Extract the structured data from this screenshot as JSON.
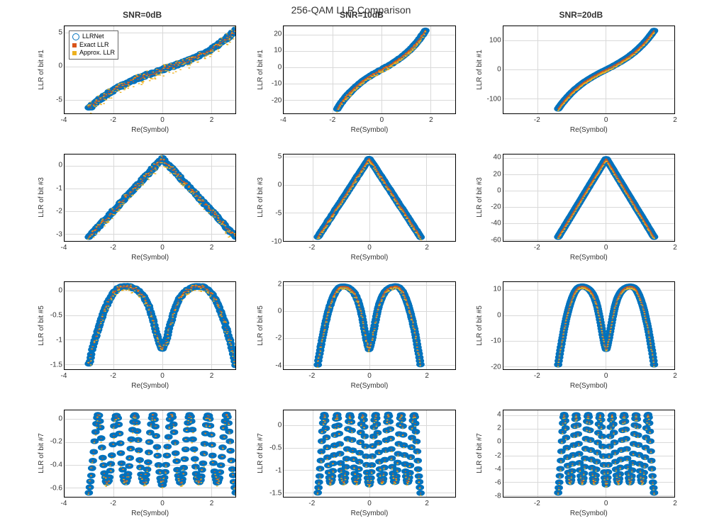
{
  "title": "256-QAM LLR Comparison",
  "column_titles": [
    "SNR=0dB",
    "SNR=10dB",
    "SNR=20dB"
  ],
  "row_ylabels": [
    "LLR of bit #1",
    "LLR of bit #3",
    "LLR of bit #5",
    "LLR of bit #7"
  ],
  "xlabel": "Re(Symbol)",
  "legend": {
    "items": [
      {
        "label": "LLRNet",
        "color": "#0072bd",
        "marker": "circle"
      },
      {
        "label": "Exact LLR",
        "color": "#d95319",
        "marker": "dot"
      },
      {
        "label": "Approx. LLR",
        "color": "#edb120",
        "marker": "dot"
      }
    ]
  },
  "colors": {
    "series": [
      "#0072bd",
      "#d95319",
      "#edb120"
    ],
    "grid": "#d9d9d9",
    "axis": "#000000",
    "bg": "#ffffff"
  },
  "marker_style": {
    "circle_r": 3.0,
    "circle_stroke": 0.9,
    "dot_size": 1.8
  },
  "panels": [
    [
      {
        "xlim": [
          -4,
          3
        ],
        "xticks": [
          -4,
          -2,
          0,
          2
        ],
        "ylim": [
          -7,
          6
        ],
        "yticks": [
          -5,
          0,
          5
        ],
        "shape": "bit1",
        "xr": 3.0,
        "noise": 0.18
      },
      {
        "xlim": [
          -4,
          3
        ],
        "xticks": [
          -4,
          -2,
          0,
          2
        ],
        "ylim": [
          -28,
          25
        ],
        "yticks": [
          -20,
          -10,
          0,
          10,
          20
        ],
        "shape": "bit1",
        "xr": 1.8,
        "noise": 0.06
      },
      {
        "xlim": [
          -3,
          2
        ],
        "xticks": [
          -2,
          0,
          2
        ],
        "ylim": [
          -150,
          150
        ],
        "yticks": [
          -100,
          0,
          100
        ],
        "shape": "bit1",
        "xr": 1.4,
        "noise": 0.02
      }
    ],
    [
      {
        "xlim": [
          -4,
          3
        ],
        "xticks": [
          -4,
          -2,
          0,
          2
        ],
        "ylim": [
          -3.3,
          0.5
        ],
        "yticks": [
          -3,
          -2,
          -1,
          0
        ],
        "shape": "bit3",
        "xr": 3.0,
        "noise": 0.15
      },
      {
        "xlim": [
          -3,
          3
        ],
        "xticks": [
          -2,
          0,
          2
        ],
        "ylim": [
          -10,
          5.5
        ],
        "yticks": [
          -10,
          -5,
          0,
          5
        ],
        "shape": "bit3",
        "xr": 1.8,
        "noise": 0.05
      },
      {
        "xlim": [
          -3,
          2
        ],
        "xticks": [
          -2,
          0,
          2
        ],
        "ylim": [
          -62,
          45
        ],
        "yticks": [
          -60,
          -40,
          -20,
          0,
          20,
          40
        ],
        "shape": "bit3",
        "xr": 1.4,
        "noise": 0.02
      }
    ],
    [
      {
        "xlim": [
          -4,
          3
        ],
        "xticks": [
          -4,
          -2,
          0,
          2
        ],
        "ylim": [
          -1.6,
          0.18
        ],
        "yticks": [
          -1.5,
          -1,
          -0.5,
          0
        ],
        "shape": "bit5",
        "xr": 3.0,
        "noise": 0.12
      },
      {
        "xlim": [
          -3,
          3
        ],
        "xticks": [
          -2,
          0,
          2
        ],
        "ylim": [
          -4.3,
          2.2
        ],
        "yticks": [
          -4,
          -2,
          0,
          2
        ],
        "shape": "bit5",
        "xr": 1.8,
        "noise": 0.05
      },
      {
        "xlim": [
          -3,
          2
        ],
        "xticks": [
          -2,
          0,
          2
        ],
        "ylim": [
          -21,
          13
        ],
        "yticks": [
          -20,
          -10,
          0,
          10
        ],
        "shape": "bit5",
        "xr": 1.4,
        "noise": 0.02
      }
    ],
    [
      {
        "xlim": [
          -4,
          3
        ],
        "xticks": [
          -4,
          -2,
          0,
          2
        ],
        "ylim": [
          -0.68,
          0.08
        ],
        "yticks": [
          -0.6,
          -0.4,
          -0.2,
          0
        ],
        "shape": "bit7",
        "xr": 3.0,
        "noise": 0.1
      },
      {
        "xlim": [
          -3,
          3
        ],
        "xticks": [
          -2,
          0,
          2
        ],
        "ylim": [
          -1.6,
          0.35
        ],
        "yticks": [
          -1.5,
          -1,
          -0.5,
          0
        ],
        "shape": "bit7",
        "xr": 1.8,
        "noise": 0.05
      },
      {
        "xlim": [
          -3,
          2
        ],
        "xticks": [
          -2,
          0,
          2
        ],
        "ylim": [
          -8.2,
          4.8
        ],
        "yticks": [
          -8,
          -6,
          -4,
          -2,
          0,
          2,
          4
        ],
        "shape": "bit7",
        "xr": 1.4,
        "noise": 0.02
      }
    ]
  ],
  "n_points": 180
}
